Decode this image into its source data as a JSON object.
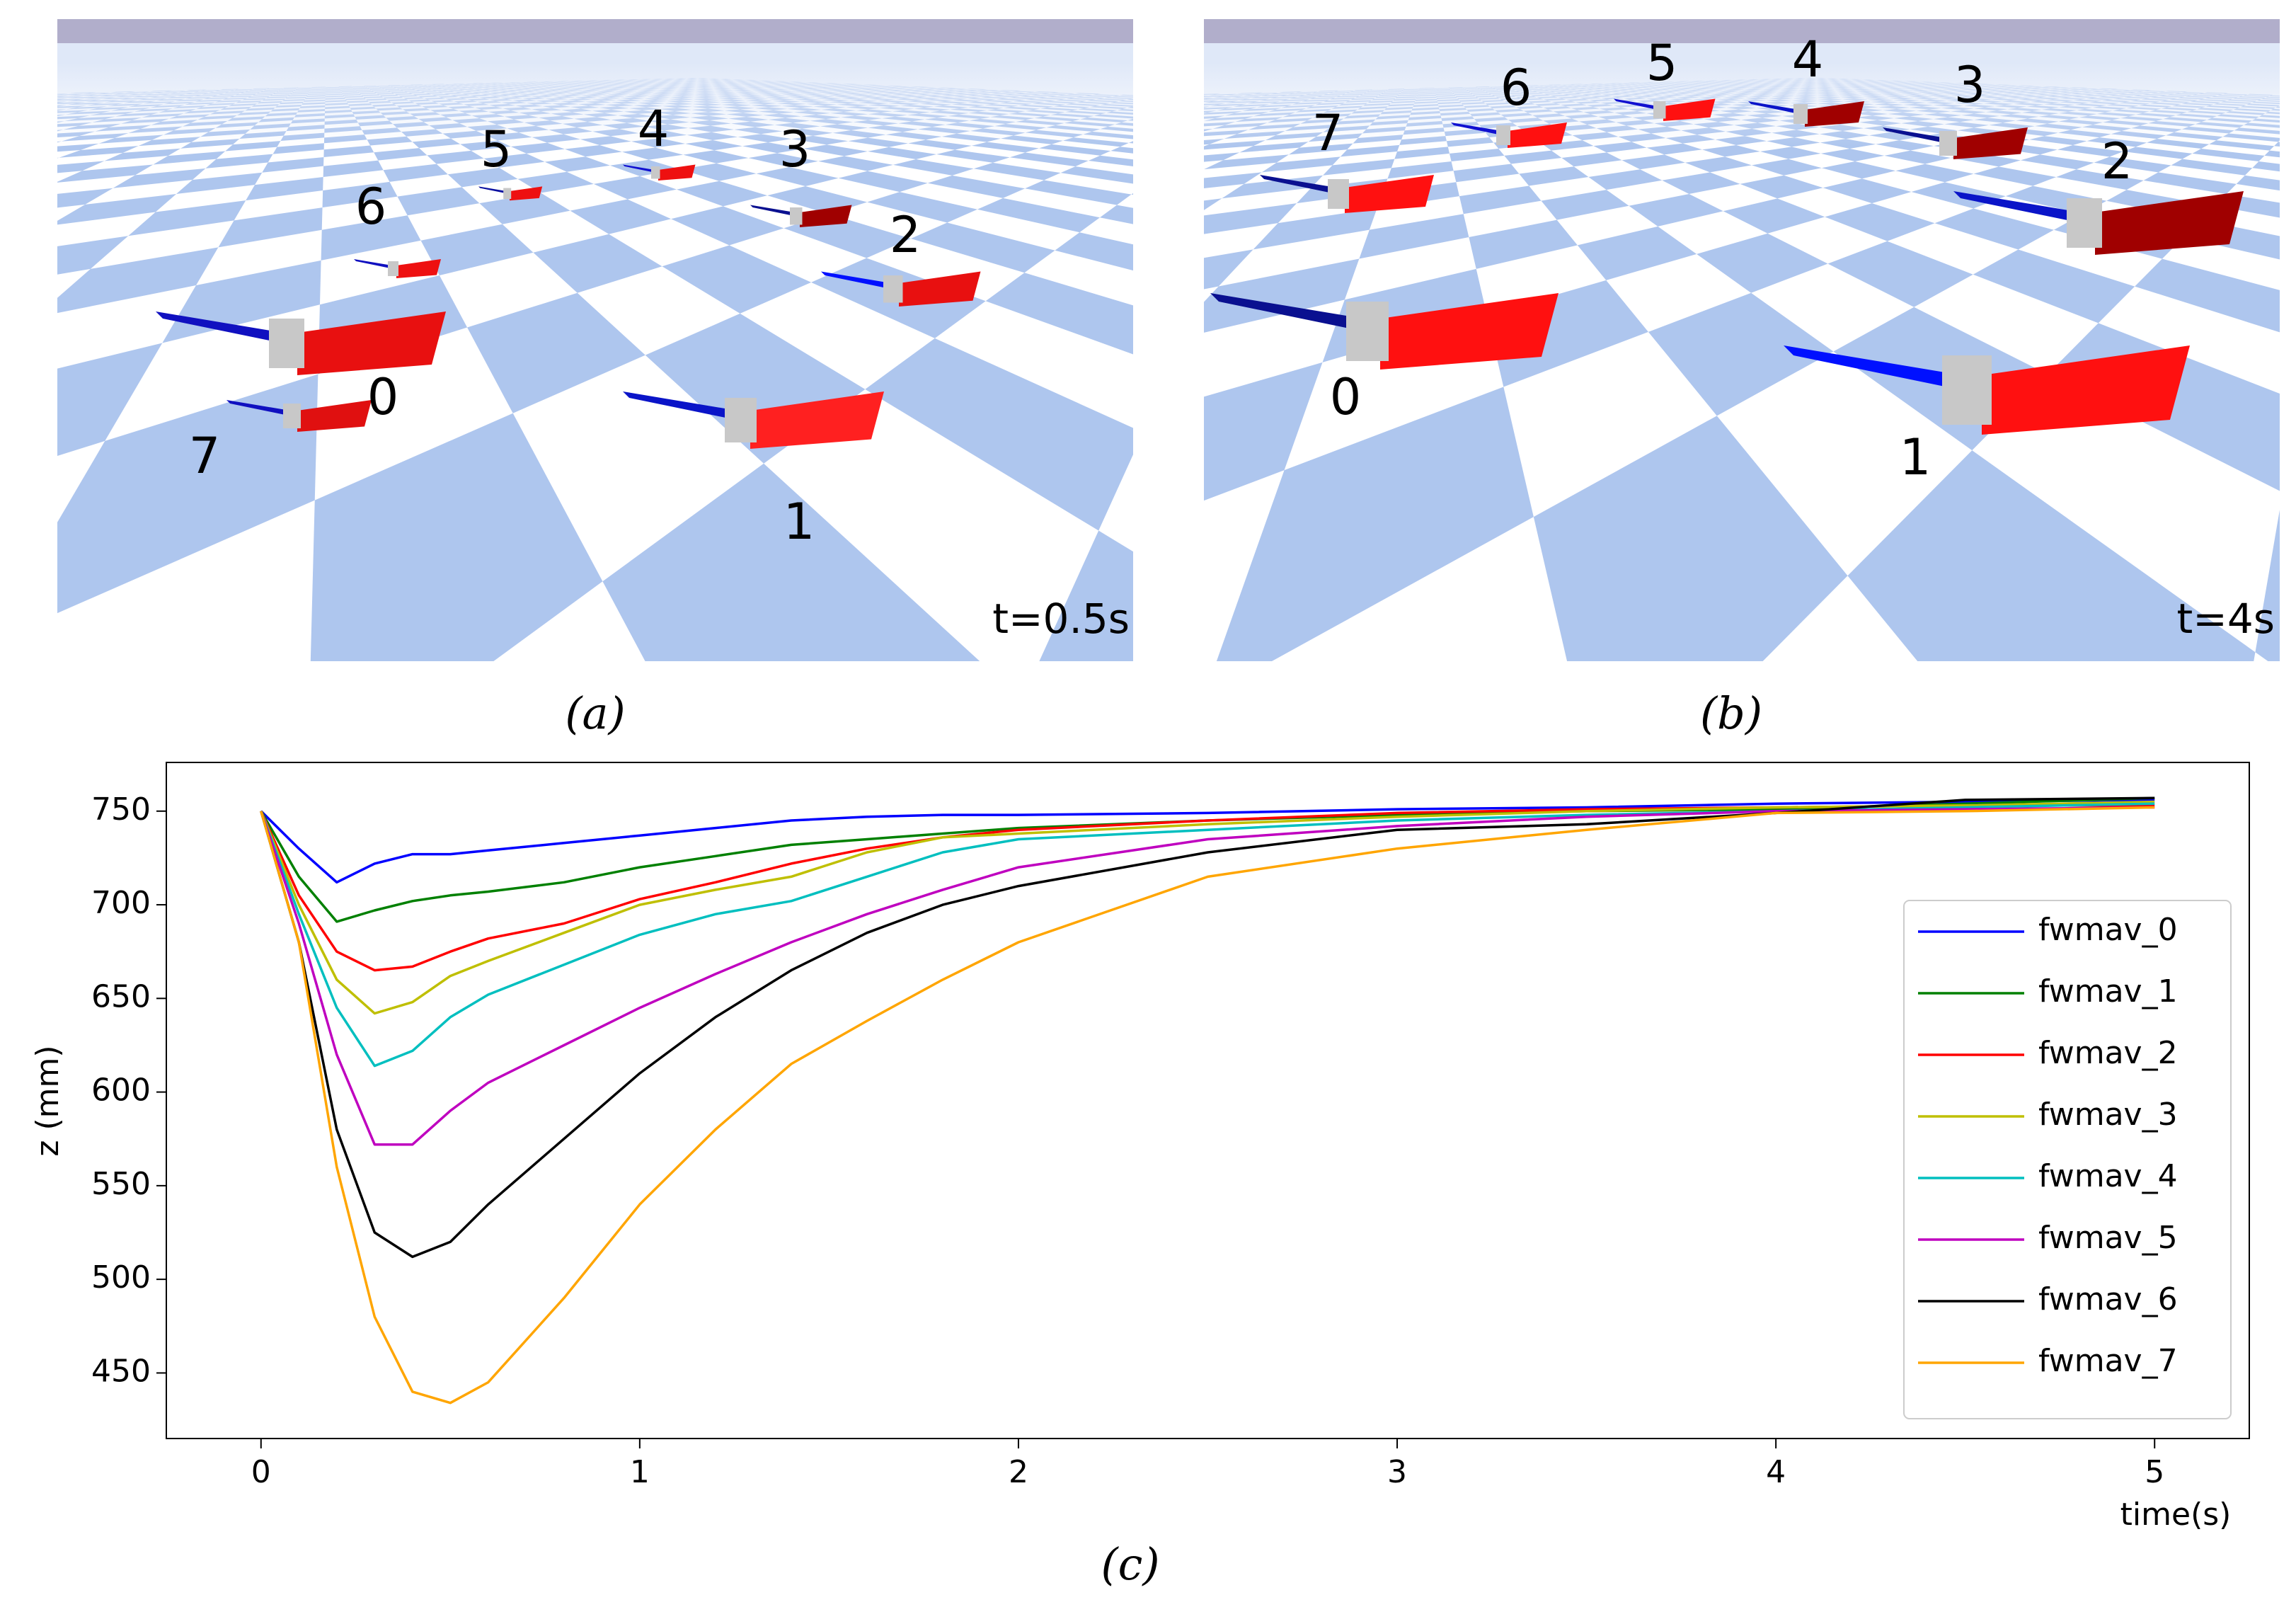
{
  "panels": [
    {
      "caption": "(a)",
      "time_label": "t=0.5s",
      "drone_labels": [
        "0",
        "1",
        "2",
        "3",
        "4",
        "5",
        "6",
        "7"
      ]
    },
    {
      "caption": "(b)",
      "time_label": "t=4s",
      "drone_labels": [
        "0",
        "1",
        "2",
        "3",
        "4",
        "5",
        "6",
        "7"
      ]
    }
  ],
  "chart_data": {
    "type": "line",
    "caption": "(c)",
    "x_label": "time(s)",
    "y_label": "z (mm)",
    "x": [
      0,
      0.1,
      0.2,
      0.3,
      0.4,
      0.5,
      0.6,
      0.8,
      1.0,
      1.2,
      1.4,
      1.6,
      1.8,
      2.0,
      2.5,
      3.0,
      3.5,
      4.0,
      4.5,
      5.0
    ],
    "series": [
      {
        "name": "fwmav_0",
        "color": "#0000ff",
        "values": [
          750,
          730,
          712,
          722,
          727,
          727,
          729,
          733,
          737,
          741,
          745,
          747,
          748,
          748,
          749,
          751,
          752,
          754,
          755,
          756
        ]
      },
      {
        "name": "fwmav_1",
        "color": "#008000",
        "values": [
          750,
          715,
          691,
          697,
          702,
          705,
          707,
          712,
          720,
          726,
          732,
          735,
          738,
          741,
          745,
          748,
          750,
          751,
          754,
          757
        ]
      },
      {
        "name": "fwmav_2",
        "color": "#ff0000",
        "values": [
          750,
          705,
          675,
          665,
          667,
          675,
          682,
          690,
          703,
          712,
          722,
          730,
          736,
          740,
          745,
          749,
          751,
          752,
          753,
          753
        ]
      },
      {
        "name": "fwmav_3",
        "color": "#bfbf00",
        "values": [
          750,
          700,
          660,
          642,
          648,
          662,
          670,
          685,
          700,
          708,
          715,
          728,
          736,
          738,
          743,
          747,
          750,
          752,
          753,
          755
        ]
      },
      {
        "name": "fwmav_4",
        "color": "#00bfbf",
        "values": [
          750,
          695,
          645,
          614,
          622,
          640,
          652,
          668,
          684,
          695,
          702,
          715,
          728,
          735,
          740,
          745,
          748,
          750,
          752,
          754
        ]
      },
      {
        "name": "fwmav_5",
        "color": "#bf00bf",
        "values": [
          750,
          690,
          620,
          572,
          572,
          590,
          605,
          625,
          645,
          663,
          680,
          695,
          708,
          720,
          735,
          742,
          747,
          750,
          751,
          752
        ]
      },
      {
        "name": "fwmav_6",
        "color": "#000000",
        "values": [
          750,
          680,
          580,
          525,
          512,
          520,
          540,
          575,
          610,
          640,
          665,
          685,
          700,
          710,
          728,
          740,
          743,
          749,
          756,
          757
        ]
      },
      {
        "name": "fwmav_7",
        "color": "#ffa500",
        "values": [
          750,
          680,
          560,
          480,
          440,
          434,
          445,
          490,
          540,
          580,
          615,
          638,
          660,
          680,
          715,
          730,
          740,
          749,
          750,
          752
        ]
      }
    ],
    "xlim": [
      -0.25,
      5.25
    ],
    "ylim": [
      415,
      776
    ],
    "xticks": [
      0,
      1,
      2,
      3,
      4,
      5
    ],
    "yticks": [
      450,
      500,
      550,
      600,
      650,
      700,
      750
    ],
    "legend": "lower right"
  }
}
